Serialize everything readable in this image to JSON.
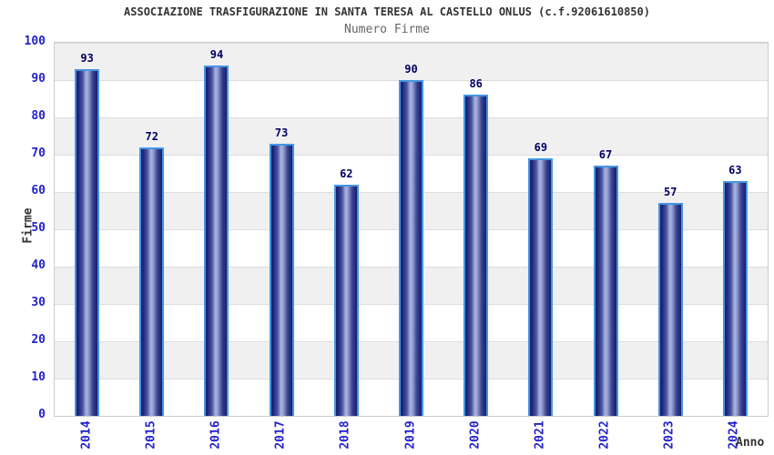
{
  "header": {
    "title": "ASSOCIAZIONE TRASFIGURAZIONE IN SANTA TERESA AL CASTELLO ONLUS (c.f.92061610850)",
    "subtitle": "Numero Firme"
  },
  "chart_data": {
    "type": "bar",
    "title": "ASSOCIAZIONE TRASFIGURAZIONE IN SANTA TERESA AL CASTELLO ONLUS (c.f.92061610850)",
    "subtitle": "Numero Firme",
    "categories": [
      "2014",
      "2015",
      "2016",
      "2017",
      "2018",
      "2019",
      "2020",
      "2021",
      "2022",
      "2023",
      "2024"
    ],
    "values": [
      93,
      72,
      94,
      73,
      62,
      90,
      86,
      69,
      67,
      57,
      63
    ],
    "xlabel": "Anno",
    "ylabel": "Firme",
    "ylim": [
      0,
      100
    ],
    "yticks": [
      0,
      10,
      20,
      30,
      40,
      50,
      60,
      70,
      80,
      90,
      100
    ],
    "grid": "horizontal alternating bands every 10 units, gray top band",
    "legend": "none",
    "value_labels_shown": true,
    "x_tick_rotation_degrees": -90,
    "colors": {
      "title_text": "#333333",
      "subtitle_text": "#666666",
      "tick_text": "#2222cc",
      "value_text": "#000066",
      "band_gray": "#f0f0f0",
      "grid_line": "#dddddd",
      "plot_border": "#cccccc",
      "bar_border": "#4495e2",
      "bar_dark": "#161d6e",
      "bar_light": "#aab4e0"
    }
  }
}
